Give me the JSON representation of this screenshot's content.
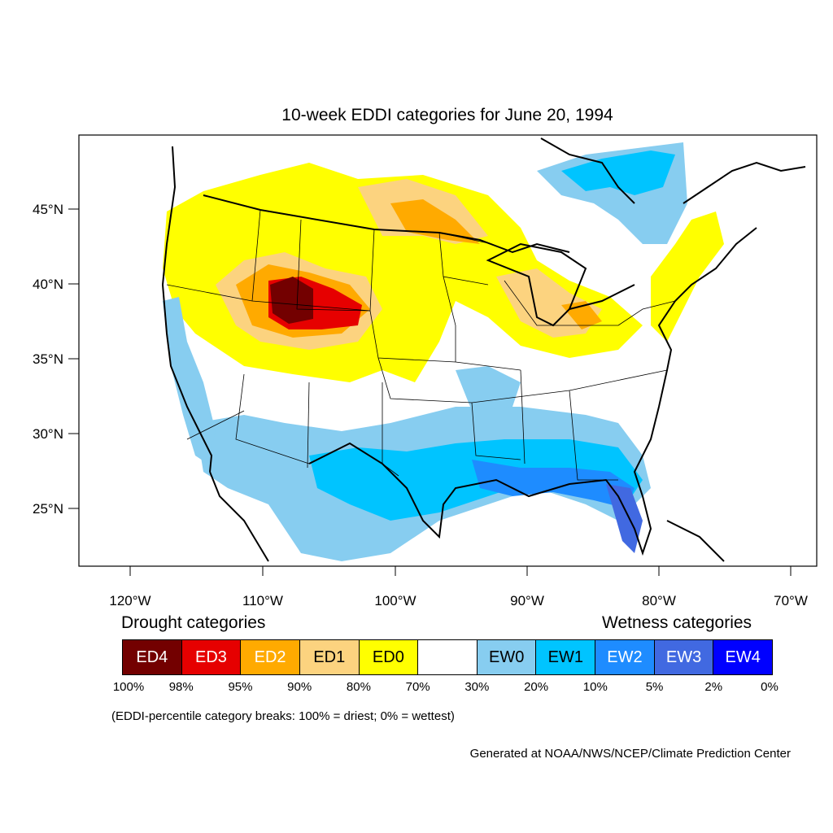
{
  "title": "10-week EDDI categories for June 20, 1994",
  "axes": {
    "lat_labels": [
      "45°N",
      "40°N",
      "35°N",
      "30°N",
      "25°N"
    ],
    "lon_labels": [
      "120°W",
      "110°W",
      "100°W",
      "90°W",
      "80°W",
      "70°W"
    ]
  },
  "legend": {
    "drought_heading": "Drought categories",
    "wetness_heading": "Wetness categories",
    "categories": [
      {
        "label": "ED4",
        "color": "#730000",
        "text_color": "#ffffff"
      },
      {
        "label": "ED3",
        "color": "#e60000",
        "text_color": "#ffffff"
      },
      {
        "label": "ED2",
        "color": "#ffaa00",
        "text_color": "#ffffff"
      },
      {
        "label": "ED1",
        "color": "#fcd37f",
        "text_color": "#000000"
      },
      {
        "label": "ED0",
        "color": "#ffff00",
        "text_color": "#000000"
      },
      {
        "label": "",
        "color": "#ffffff",
        "text_color": "#000000"
      },
      {
        "label": "EW0",
        "color": "#87cdf0",
        "text_color": "#000000"
      },
      {
        "label": "EW1",
        "color": "#00c4ff",
        "text_color": "#000000"
      },
      {
        "label": "EW2",
        "color": "#1e8cff",
        "text_color": "#ffffff"
      },
      {
        "label": "EW3",
        "color": "#4169e1",
        "text_color": "#ffffff"
      },
      {
        "label": "EW4",
        "color": "#0000ff",
        "text_color": "#ffffff"
      }
    ],
    "breaks": [
      "100%",
      "98%",
      "95%",
      "90%",
      "80%",
      "70%",
      "30%",
      "20%",
      "10%",
      "5%",
      "2%",
      "0%"
    ],
    "note": "(EDDI-percentile category breaks: 100% = driest; 0% = wettest)"
  },
  "credit": "Generated at NOAA/NWS/NCEP/Climate Prediction Center"
}
